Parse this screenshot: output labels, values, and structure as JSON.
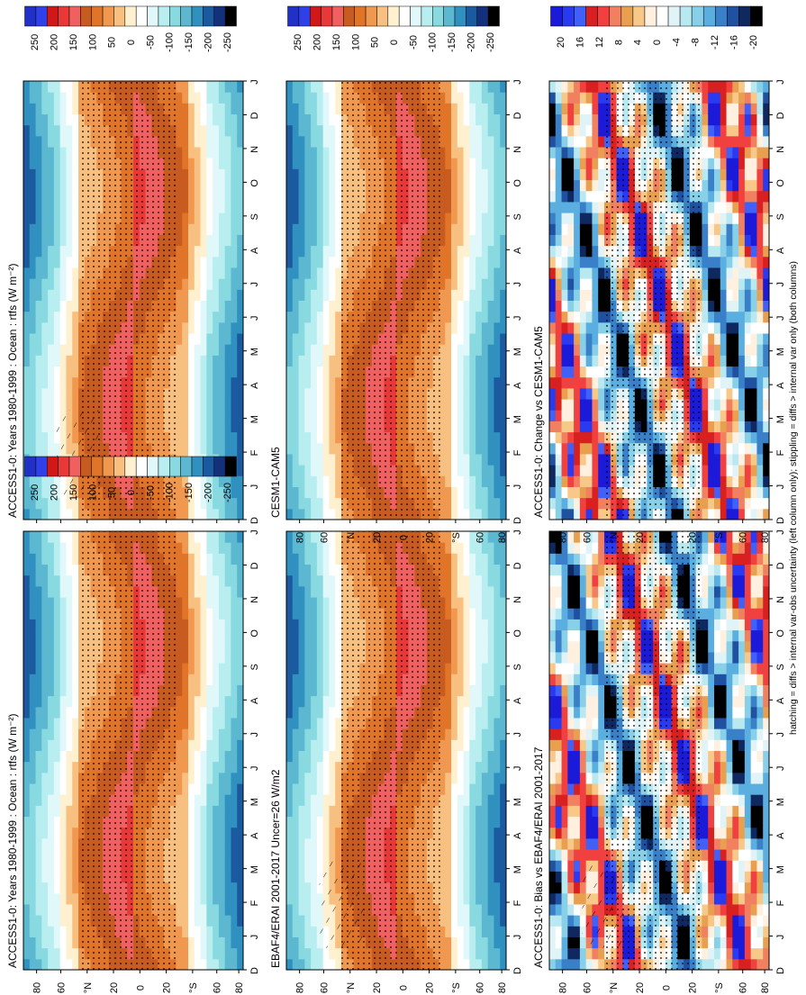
{
  "footer_caption": "hatching = diffs > internal var-obs uncertainty (left column only); stippling = diffs > internal var only (both columns)",
  "colors": {
    "abs_scale": [
      "#2030c8",
      "#3040e8",
      "#d01818",
      "#e83838",
      "#f06060",
      "#c85c20",
      "#e07428",
      "#f09850",
      "#f8c080",
      "#fff0d0",
      "#ffffff",
      "#e0f8fa",
      "#b8eef0",
      "#88dae0",
      "#5cb8d0",
      "#3090c0",
      "#1c5aa0",
      "#14307a",
      "#000000"
    ],
    "diff_scale": [
      "#1a1ad8",
      "#2a3af0",
      "#4060f8",
      "#d82020",
      "#f04040",
      "#f08060",
      "#e8a050",
      "#f8c888",
      "#fff0e0",
      "#ffffff",
      "#e0f4f8",
      "#b8e8f0",
      "#88d0e8",
      "#5aaee0",
      "#3a80c8",
      "#2050a0",
      "#102860",
      "#000000"
    ]
  },
  "chart_data": [
    {
      "type": "heatmap",
      "title": "ACCESS1-0: Years 1980-1999 : Ocean : rtfs (W m⁻²)",
      "x_tick_labels": [
        "D",
        "J",
        "F",
        "M",
        "A",
        "M",
        "J",
        "J",
        "A",
        "S",
        "O",
        "N",
        "D",
        "J"
      ],
      "y_tick_labels": [
        "80",
        "60",
        "°N",
        "20",
        "0",
        "20",
        "°S",
        "60",
        "80"
      ],
      "colorbar_labels": [
        "250",
        "200",
        "150",
        "100",
        "50",
        "0",
        "-50",
        "-100",
        "-150",
        "-200",
        "-250"
      ],
      "hatching": true,
      "stippling": true
    },
    {
      "type": "heatmap",
      "title": "ACCESS1-0: Years 1980-1999 : Ocean : rtfs (W m⁻²)",
      "x_tick_labels": [
        "D",
        "J",
        "F",
        "M",
        "A",
        "M",
        "J",
        "J",
        "A",
        "S",
        "O",
        "N",
        "D",
        "J"
      ],
      "y_tick_labels": [
        "80",
        "60",
        "°N",
        "20",
        "0",
        "20",
        "°S",
        "60",
        "80"
      ],
      "colorbar_labels": [
        "250",
        "200",
        "150",
        "100",
        "50",
        "0",
        "-50",
        "-100",
        "-150",
        "-200",
        "-250"
      ],
      "stippling": true
    },
    {
      "type": "heatmap",
      "title": "EBAF4/ERAI 2001-2017 Uncer=26 W/m2",
      "x_tick_labels": [
        "D",
        "J",
        "F",
        "M",
        "A",
        "M",
        "J",
        "J",
        "A",
        "S",
        "O",
        "N",
        "D",
        "J"
      ],
      "y_tick_labels": [
        "80",
        "60",
        "°N",
        "20",
        "0",
        "20",
        "°S",
        "60",
        "80"
      ],
      "colorbar_labels": [
        "250",
        "200",
        "150",
        "100",
        "50",
        "0",
        "-50",
        "-100",
        "-150",
        "-200",
        "-250"
      ],
      "hatching": true,
      "stippling": true
    },
    {
      "type": "heatmap",
      "title": "CESM1-CAM5",
      "x_tick_labels": [
        "D",
        "J",
        "F",
        "M",
        "A",
        "M",
        "J",
        "J",
        "A",
        "S",
        "O",
        "N",
        "D",
        "J"
      ],
      "y_tick_labels": [
        "80",
        "60",
        "°N",
        "20",
        "0",
        "20",
        "°S",
        "60",
        "80"
      ],
      "colorbar_labels": [
        "250",
        "200",
        "150",
        "100",
        "50",
        "0",
        "-50",
        "-100",
        "-150",
        "-200",
        "-250"
      ],
      "stippling": true
    },
    {
      "type": "heatmap",
      "title": "ACCESS1-0: Bias vs EBAF4/ERAI 2001-2017",
      "x_tick_labels": [
        "D",
        "J",
        "F",
        "M",
        "A",
        "M",
        "J",
        "J",
        "A",
        "S",
        "O",
        "N",
        "D",
        "J"
      ],
      "y_tick_labels": [
        "80",
        "60",
        "°N",
        "20",
        "0",
        "20",
        "°S",
        "60",
        "80"
      ],
      "colorbar_labels": [
        "20",
        "16",
        "12",
        "8",
        "4",
        "0",
        "-4",
        "-8",
        "-12",
        "-16",
        "-20"
      ],
      "hatching": true,
      "stippling": true
    },
    {
      "type": "heatmap",
      "title": "ACCESS1-0: Change vs CESM1-CAM5",
      "x_tick_labels": [
        "D",
        "J",
        "F",
        "M",
        "A",
        "M",
        "J",
        "J",
        "A",
        "S",
        "O",
        "N",
        "D",
        "J"
      ],
      "y_tick_labels": [
        "80",
        "60",
        "°N",
        "20",
        "0",
        "20",
        "°S",
        "60",
        "80"
      ],
      "colorbar_labels": [
        "20",
        "16",
        "12",
        "8",
        "4",
        "0",
        "-4",
        "-8",
        "-12",
        "-16",
        "-20"
      ],
      "stippling": true
    }
  ]
}
